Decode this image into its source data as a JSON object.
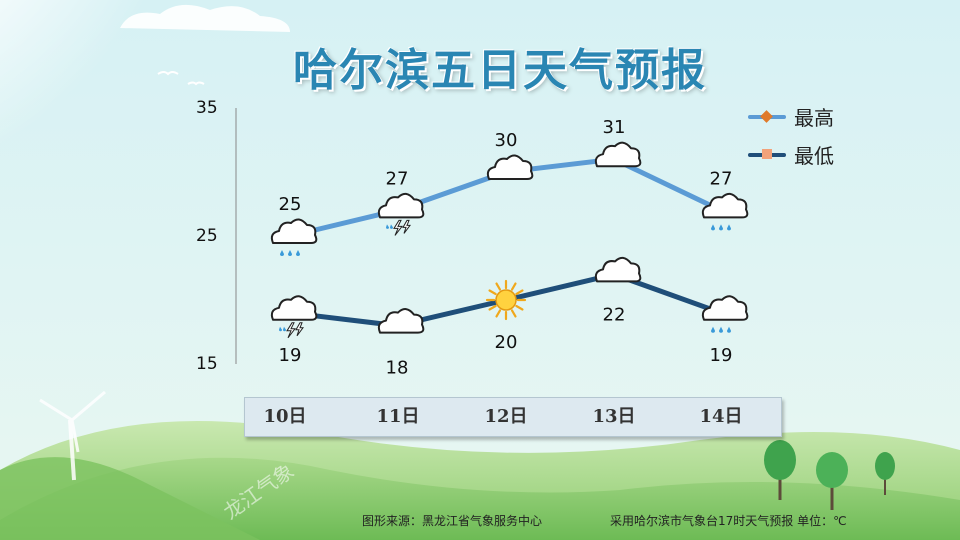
{
  "title": "哈尔滨五日天气预报",
  "y_axis_ticks": [
    "35",
    "25",
    "15"
  ],
  "legend": [
    {
      "label": "最高",
      "color": "#5b9bd5",
      "marker_color": "#e07a2a",
      "marker": "diamond"
    },
    {
      "label": "最低",
      "color": "#1f4e79",
      "marker_color": "#f2a27a",
      "marker": "square"
    }
  ],
  "days": [
    "10日",
    "11日",
    "12日",
    "13日",
    "14日"
  ],
  "footer": {
    "source": "图形来源：黑龙江省气象服务中心",
    "note": "采用哈尔滨市气象台17时天气预报 单位：℃"
  },
  "watermark": "龙江气象",
  "chart_data": {
    "type": "line",
    "categories": [
      "10日",
      "11日",
      "12日",
      "13日",
      "14日"
    ],
    "ylim": [
      15,
      35
    ],
    "grid": false,
    "legend_position": "top-right",
    "series": [
      {
        "name": "最高",
        "values": [
          25,
          27,
          30,
          31,
          27
        ],
        "value_labels": [
          "25",
          "27",
          "30",
          "31",
          "27"
        ],
        "icons": [
          "rain-cloud-icon",
          "thunderstorm-cloud-icon",
          "cloud-icon",
          "cloud-icon",
          "rain-cloud-icon"
        ]
      },
      {
        "name": "最低",
        "values": [
          19,
          18,
          20,
          22,
          19
        ],
        "value_labels": [
          "19",
          "18",
          "20",
          "22",
          "19"
        ],
        "icons": [
          "thunderstorm-cloud-icon",
          "cloud-icon",
          "sun-icon",
          "cloud-icon",
          "rain-cloud-icon"
        ]
      }
    ]
  }
}
